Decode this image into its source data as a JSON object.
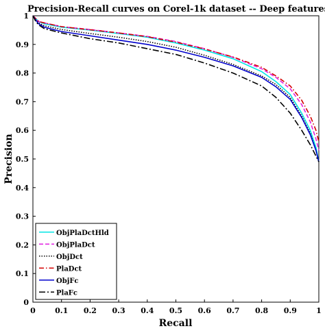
{
  "chart_data": {
    "type": "line",
    "title": "Precision-Recall curves on Corel-1k dataset -- Deep features",
    "xlabel": "Recall",
    "ylabel": "Precision",
    "xlim": [
      0,
      1
    ],
    "ylim": [
      0,
      1
    ],
    "grid": false,
    "legend_position": "bottom-left",
    "x_ticks": [
      "0",
      "0.1",
      "0.2",
      "0.3",
      "0.4",
      "0.5",
      "0.6",
      "0.7",
      "0.8",
      "0.9",
      "1"
    ],
    "y_ticks": [
      "0",
      "0.1",
      "0.2",
      "0.3",
      "0.4",
      "0.5",
      "0.6",
      "0.7",
      "0.8",
      "0.9",
      "1"
    ],
    "series": [
      {
        "name": "ObjPlaDctHld",
        "color": "#00e5e5",
        "dash": "solid",
        "points": [
          [
            0,
            1
          ],
          [
            0.01,
            0.99
          ],
          [
            0.02,
            0.98
          ],
          [
            0.04,
            0.972
          ],
          [
            0.1,
            0.96
          ],
          [
            0.2,
            0.95
          ],
          [
            0.3,
            0.938
          ],
          [
            0.4,
            0.925
          ],
          [
            0.5,
            0.905
          ],
          [
            0.6,
            0.88
          ],
          [
            0.7,
            0.85
          ],
          [
            0.8,
            0.805
          ],
          [
            0.85,
            0.77
          ],
          [
            0.9,
            0.725
          ],
          [
            0.94,
            0.66
          ],
          [
            0.97,
            0.6
          ],
          [
            0.99,
            0.54
          ],
          [
            1,
            0.49
          ]
        ]
      },
      {
        "name": "ObjPlaDct",
        "color": "#e020e0",
        "dash": "dashed",
        "points": [
          [
            0,
            1
          ],
          [
            0.01,
            0.99
          ],
          [
            0.02,
            0.98
          ],
          [
            0.04,
            0.975
          ],
          [
            0.1,
            0.962
          ],
          [
            0.2,
            0.952
          ],
          [
            0.3,
            0.94
          ],
          [
            0.4,
            0.928
          ],
          [
            0.5,
            0.91
          ],
          [
            0.6,
            0.885
          ],
          [
            0.7,
            0.855
          ],
          [
            0.8,
            0.815
          ],
          [
            0.85,
            0.785
          ],
          [
            0.9,
            0.745
          ],
          [
            0.94,
            0.69
          ],
          [
            0.97,
            0.63
          ],
          [
            0.99,
            0.57
          ],
          [
            1,
            0.53
          ]
        ]
      },
      {
        "name": "ObjDct",
        "color": "#000000",
        "dash": "dotted",
        "points": [
          [
            0,
            1
          ],
          [
            0.01,
            0.985
          ],
          [
            0.02,
            0.975
          ],
          [
            0.04,
            0.965
          ],
          [
            0.1,
            0.952
          ],
          [
            0.2,
            0.938
          ],
          [
            0.3,
            0.925
          ],
          [
            0.4,
            0.91
          ],
          [
            0.5,
            0.89
          ],
          [
            0.6,
            0.862
          ],
          [
            0.7,
            0.83
          ],
          [
            0.8,
            0.79
          ],
          [
            0.85,
            0.76
          ],
          [
            0.9,
            0.715
          ],
          [
            0.94,
            0.65
          ],
          [
            0.97,
            0.59
          ],
          [
            0.99,
            0.53
          ],
          [
            1,
            0.49
          ]
        ]
      },
      {
        "name": "PlaDct",
        "color": "#d40000",
        "dash": "dashdot",
        "points": [
          [
            0,
            1
          ],
          [
            0.01,
            0.99
          ],
          [
            0.02,
            0.98
          ],
          [
            0.04,
            0.975
          ],
          [
            0.1,
            0.962
          ],
          [
            0.2,
            0.951
          ],
          [
            0.3,
            0.94
          ],
          [
            0.4,
            0.927
          ],
          [
            0.5,
            0.908
          ],
          [
            0.6,
            0.884
          ],
          [
            0.7,
            0.856
          ],
          [
            0.8,
            0.82
          ],
          [
            0.85,
            0.79
          ],
          [
            0.9,
            0.755
          ],
          [
            0.94,
            0.705
          ],
          [
            0.97,
            0.65
          ],
          [
            0.99,
            0.6
          ],
          [
            1,
            0.56
          ]
        ]
      },
      {
        "name": "ObjFc",
        "color": "#0000cc",
        "dash": "solid",
        "points": [
          [
            0,
            1
          ],
          [
            0.01,
            0.985
          ],
          [
            0.02,
            0.972
          ],
          [
            0.04,
            0.96
          ],
          [
            0.1,
            0.945
          ],
          [
            0.2,
            0.93
          ],
          [
            0.3,
            0.915
          ],
          [
            0.4,
            0.9
          ],
          [
            0.5,
            0.88
          ],
          [
            0.6,
            0.855
          ],
          [
            0.7,
            0.825
          ],
          [
            0.8,
            0.785
          ],
          [
            0.85,
            0.752
          ],
          [
            0.9,
            0.708
          ],
          [
            0.94,
            0.645
          ],
          [
            0.97,
            0.585
          ],
          [
            0.99,
            0.53
          ],
          [
            1,
            0.49
          ]
        ]
      },
      {
        "name": "PlaFc",
        "color": "#000000",
        "dash": "longdashdot",
        "points": [
          [
            0,
            1
          ],
          [
            0.01,
            0.98
          ],
          [
            0.02,
            0.968
          ],
          [
            0.04,
            0.955
          ],
          [
            0.1,
            0.94
          ],
          [
            0.2,
            0.92
          ],
          [
            0.3,
            0.905
          ],
          [
            0.4,
            0.885
          ],
          [
            0.5,
            0.865
          ],
          [
            0.6,
            0.835
          ],
          [
            0.7,
            0.8
          ],
          [
            0.8,
            0.755
          ],
          [
            0.85,
            0.715
          ],
          [
            0.9,
            0.66
          ],
          [
            0.94,
            0.6
          ],
          [
            0.97,
            0.55
          ],
          [
            0.99,
            0.51
          ],
          [
            1,
            0.49
          ]
        ]
      }
    ]
  }
}
